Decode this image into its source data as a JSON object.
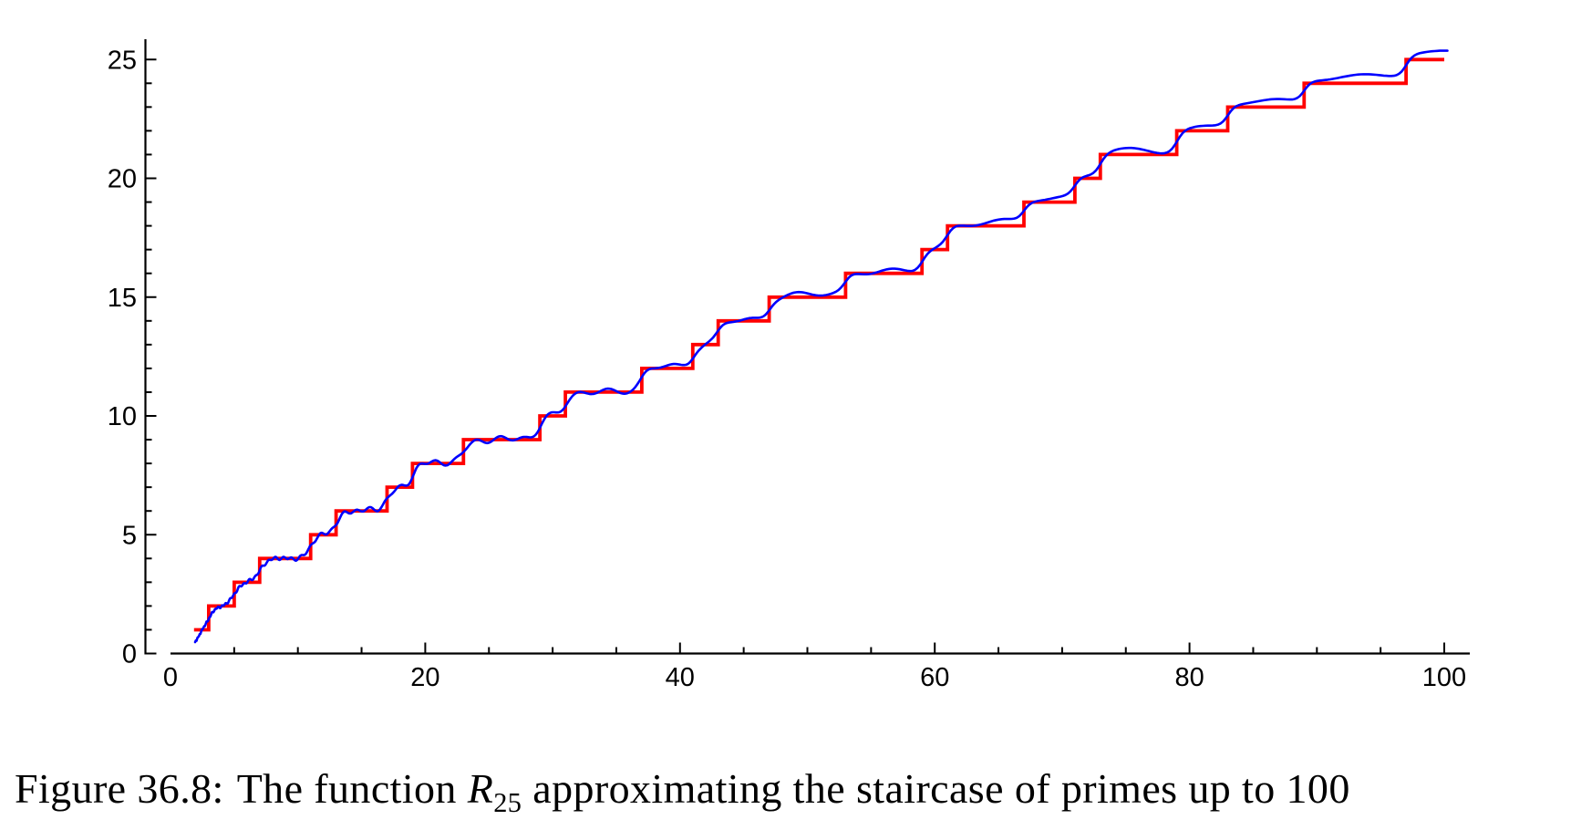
{
  "figure": {
    "caption": {
      "prefix": "Figure 36.8:",
      "body_before_math": "The function",
      "math_base": "R",
      "math_sub": "25",
      "body_after_math": "approximating the staircase of primes up to 100"
    }
  },
  "chart_data": {
    "type": "line",
    "title": "",
    "xlabel": "",
    "ylabel": "",
    "xlim": [
      0,
      100
    ],
    "ylim": [
      0,
      25
    ],
    "grid": false,
    "legend": "none",
    "axis_color": "#000000",
    "x_major_ticks": [
      0,
      20,
      40,
      60,
      80,
      100
    ],
    "x_minor_tick_step": 5,
    "y_major_ticks": [
      0,
      5,
      10,
      15,
      20,
      25
    ],
    "y_minor_tick_step": 1,
    "series": [
      {
        "name": "staircase-of-primes",
        "description": "pi(x), the staircase of primes: jumps by 1 at each prime",
        "type": "step",
        "color": "#ff0000",
        "stroke_width": 3.8,
        "primes": [
          2,
          3,
          5,
          7,
          11,
          13,
          17,
          19,
          23,
          29,
          31,
          37,
          41,
          43,
          47,
          53,
          59,
          61,
          67,
          71,
          73,
          79,
          83,
          89,
          97
        ],
        "x_start": 1.85,
        "x_end": 100,
        "start_value": 1,
        "end_value": 25
      },
      {
        "name": "R25-approximation",
        "description": "R_25, smooth oscillating approximation hugging the staircase",
        "type": "smooth",
        "color": "#0000ff",
        "stroke_width": 2.6,
        "x_start": 1.93,
        "x_end": 100.45,
        "end_value_approx": 25.38,
        "model": {
          "step_width": 0.3,
          "drift_quad": 3e-05,
          "ramp_base": 0.25,
          "ramp_per_unit": 0.04,
          "ripples": [
            {
              "amplitude": 0.09,
              "log_freq": 88,
              "phase": 4.4
            },
            {
              "amplitude": 0.05,
              "log_freq": 48,
              "phase": 2.0
            },
            {
              "amplitude": 0.04,
              "log_freq": 21,
              "phase": 0.7
            }
          ]
        }
      }
    ]
  }
}
